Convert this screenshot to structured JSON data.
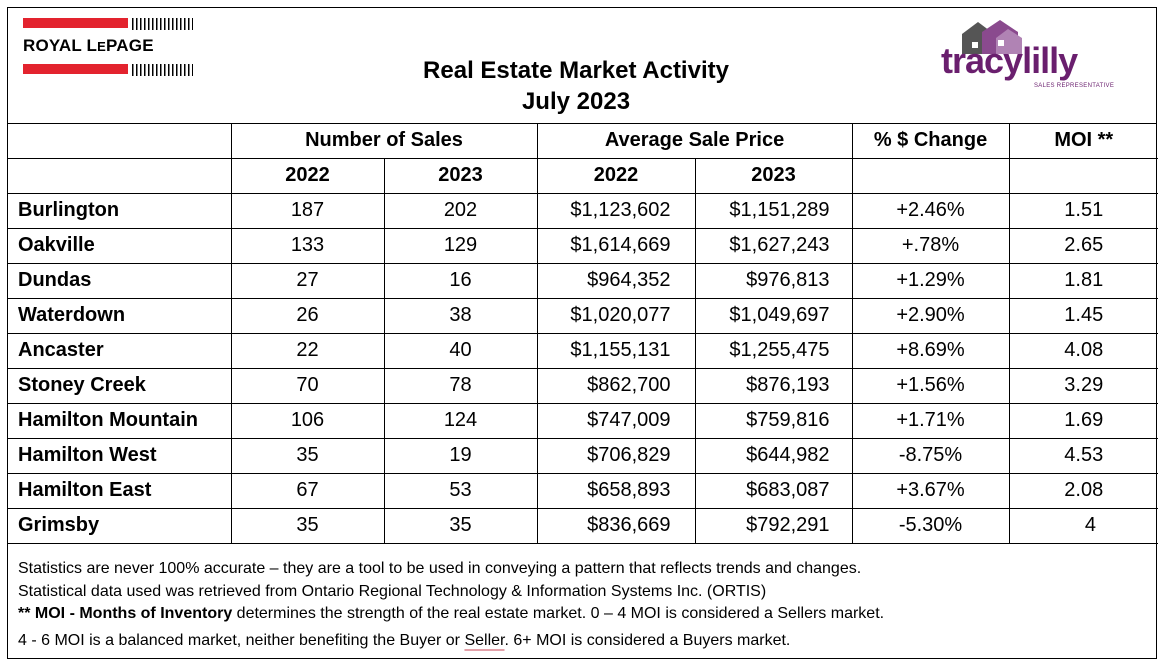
{
  "logo_left": {
    "brand_text_1": "ROYAL L",
    "brand_text_e": "E",
    "brand_text_2": "PAGE",
    "bar_color": "#e3232e"
  },
  "logo_right": {
    "text": "tracylilly",
    "subtitle": "SALES REPRESENTATIVE",
    "color": "#6a1f6e"
  },
  "title": {
    "line1": "Real Estate Market Activity",
    "line2": "July 2023"
  },
  "table": {
    "group_headers": [
      "Number of Sales",
      "Average Sale Price",
      "% $ Change",
      "MOI **"
    ],
    "year_headers": [
      "2022",
      "2023",
      "2022",
      "2023"
    ],
    "rows": [
      {
        "area": "Burlington",
        "sales_2022": "187",
        "sales_2023": "202",
        "price_2022": "$1,123,602",
        "price_2023": "$1,151,289",
        "change": "+2.46%",
        "moi": "1.51"
      },
      {
        "area": "Oakville",
        "sales_2022": "133",
        "sales_2023": "129",
        "price_2022": "$1,614,669",
        "price_2023": "$1,627,243",
        "change": "+.78%",
        "moi": "2.65"
      },
      {
        "area": "Dundas",
        "sales_2022": "27",
        "sales_2023": "16",
        "price_2022": "$964,352",
        "price_2023": "$976,813",
        "change": "+1.29%",
        "moi": "1.81"
      },
      {
        "area": "Waterdown",
        "sales_2022": "26",
        "sales_2023": "38",
        "price_2022": "$1,020,077",
        "price_2023": "$1,049,697",
        "change": "+2.90%",
        "moi": "1.45"
      },
      {
        "area": "Ancaster",
        "sales_2022": "22",
        "sales_2023": "40",
        "price_2022": "$1,155,131",
        "price_2023": "$1,255,475",
        "change": "+8.69%",
        "moi": "4.08"
      },
      {
        "area": "Stoney Creek",
        "sales_2022": "70",
        "sales_2023": "78",
        "price_2022": "$862,700",
        "price_2023": "$876,193",
        "change": "+1.56%",
        "moi": "3.29"
      },
      {
        "area": "Hamilton Mountain",
        "sales_2022": "106",
        "sales_2023": "124",
        "price_2022": "$747,009",
        "price_2023": "$759,816",
        "change": "+1.71%",
        "moi": "1.69"
      },
      {
        "area": "Hamilton West",
        "sales_2022": "35",
        "sales_2023": "19",
        "price_2022": "$706,829",
        "price_2023": "$644,982",
        "change": "-8.75%",
        "moi": "4.53"
      },
      {
        "area": "Hamilton East",
        "sales_2022": "67",
        "sales_2023": "53",
        "price_2022": "$658,893",
        "price_2023": "$683,087",
        "change": "+3.67%",
        "moi": "2.08"
      },
      {
        "area": "Grimsby",
        "sales_2022": "35",
        "sales_2023": "35",
        "price_2022": "$836,669",
        "price_2023": "$792,291",
        "change": "-5.30%",
        "moi": "4"
      }
    ]
  },
  "notes": {
    "line1": "Statistics are never 100% accurate – they are a tool to be used in conveying a pattern that reflects trends and changes.",
    "line2": "Statistical data used was retrieved from Ontario Regional Technology & Information Systems Inc. (ORTIS)",
    "line3_bold": "** MOI - Months of Inventory",
    "line3_rest": " determines the strength of the real estate market. 0 – 4 MOI is considered a Sellers market.",
    "line4_a": "4 - 6 MOI is a balanced market, neither benefiting the Buyer or ",
    "line4_b": "Seller",
    "line4_c": ". 6+ MOI is considered a Buyers market."
  }
}
